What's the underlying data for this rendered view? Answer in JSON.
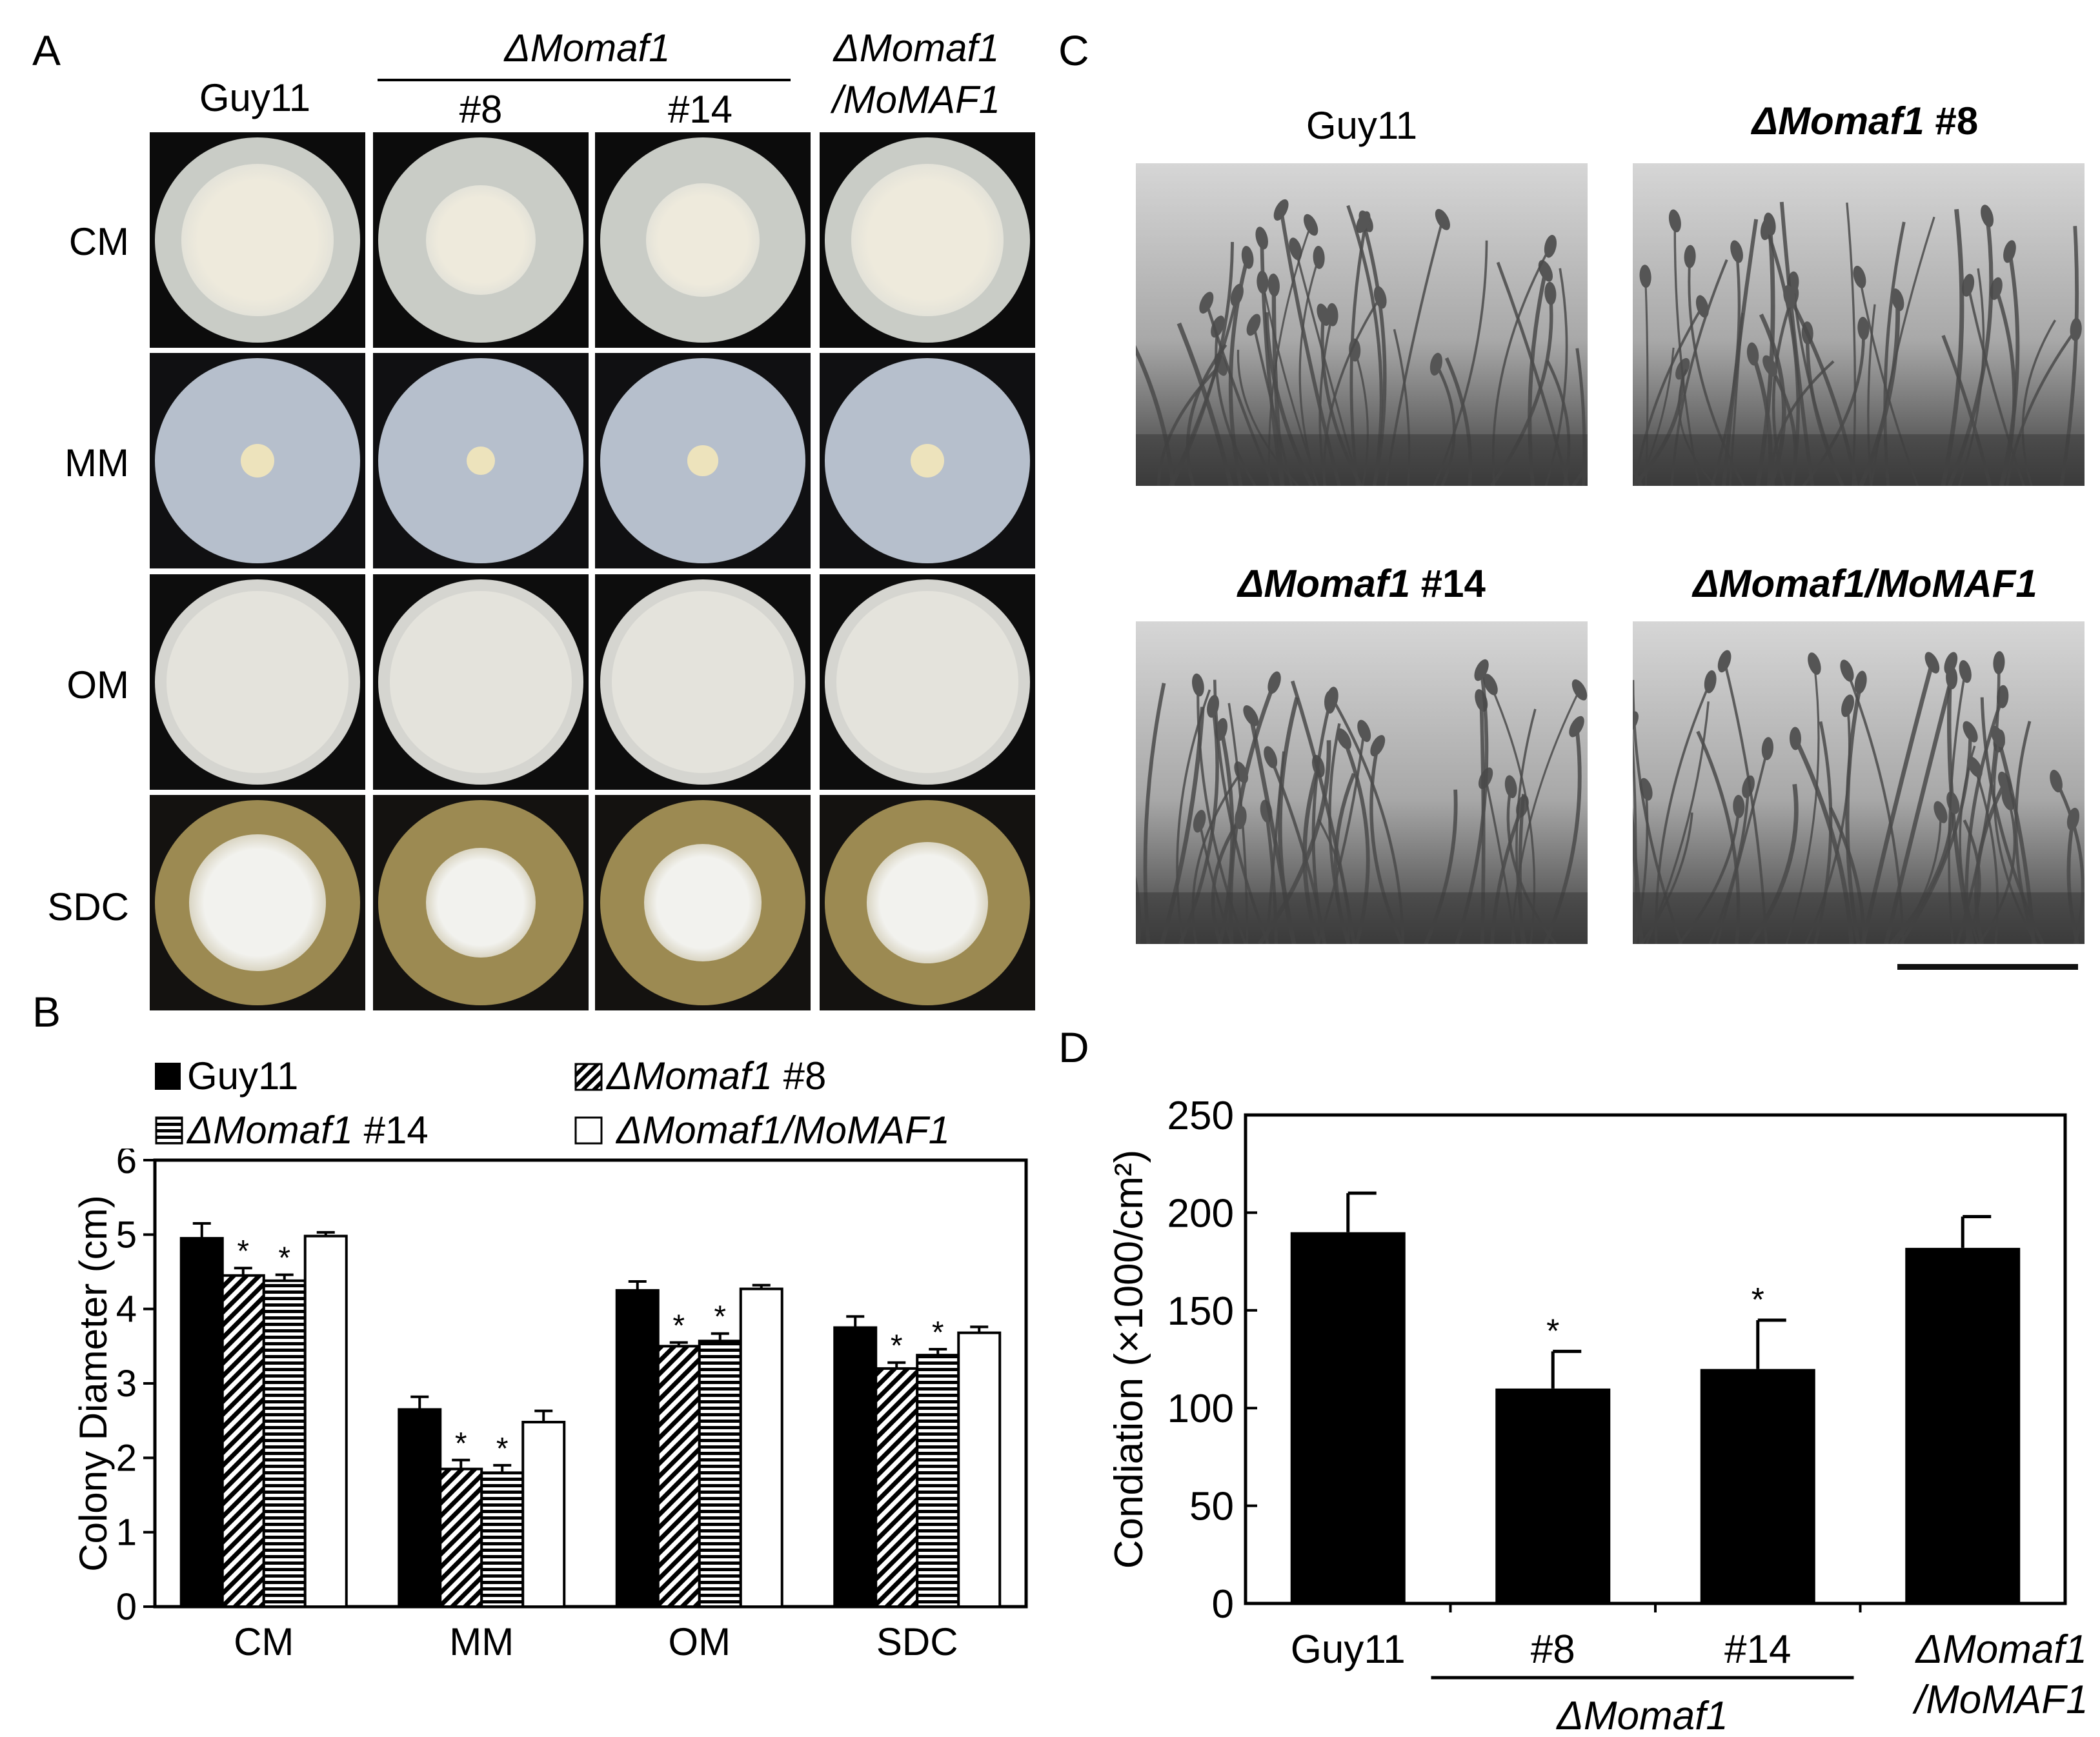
{
  "panel_letters": {
    "a": "A",
    "b": "B",
    "c": "C",
    "d": "D"
  },
  "panel_a": {
    "headers": {
      "guy11": "Guy11",
      "mutant_group": "ΔMomaf1",
      "strain8": "#8",
      "strain14": "#14",
      "complement_line1": "ΔMomaf1",
      "complement_line2": "/MoMAF1"
    },
    "rows": [
      "CM",
      "MM",
      "OM",
      "SDC"
    ]
  },
  "panel_c": {
    "labels": [
      "Guy11",
      "ΔMomaf1 #8",
      "ΔMomaf1 #14",
      "ΔMomaf1/MoMAF1"
    ]
  },
  "chart_data": [
    {
      "type": "bar",
      "panel": "B",
      "categories": [
        "CM",
        "MM",
        "OM",
        "SDC"
      ],
      "ylabel": "Colony Diameter (cm)",
      "xlabel": "",
      "ylim": [
        0,
        6
      ],
      "yticks": [
        0,
        1,
        2,
        3,
        4,
        5,
        6
      ],
      "legend_position": "top",
      "series": [
        {
          "name": "Guy11",
          "values": [
            4.95,
            2.65,
            4.25,
            3.75
          ],
          "errors": [
            0.2,
            0.17,
            0.12,
            0.15
          ],
          "fill": "solid"
        },
        {
          "name": "ΔMomaf1 #8",
          "values": [
            4.45,
            1.85,
            3.5,
            3.2
          ],
          "errors": [
            0.1,
            0.12,
            0.05,
            0.08
          ],
          "fill": "diagonal"
        },
        {
          "name": "ΔMomaf1 #14",
          "values": [
            4.38,
            1.8,
            3.57,
            3.38
          ],
          "errors": [
            0.08,
            0.1,
            0.1,
            0.08
          ],
          "fill": "horizontal"
        },
        {
          "name": "ΔMomaf1/MoMAF1",
          "values": [
            4.98,
            2.48,
            4.27,
            3.68
          ],
          "errors": [
            0.05,
            0.15,
            0.05,
            0.08
          ],
          "fill": "white"
        }
      ],
      "significance": [
        {
          "series": 1,
          "category": 0,
          "mark": "*"
        },
        {
          "series": 2,
          "category": 0,
          "mark": "*"
        },
        {
          "series": 1,
          "category": 1,
          "mark": "*"
        },
        {
          "series": 2,
          "category": 1,
          "mark": "*"
        },
        {
          "series": 1,
          "category": 2,
          "mark": "*"
        },
        {
          "series": 2,
          "category": 2,
          "mark": "*"
        },
        {
          "series": 1,
          "category": 3,
          "mark": "*"
        },
        {
          "series": 2,
          "category": 3,
          "mark": "*"
        }
      ]
    },
    {
      "type": "bar",
      "panel": "D",
      "categories": [
        "Guy11",
        "#8",
        "#14",
        "ΔMomaf1\n/MoMAF1"
      ],
      "group_label": "ΔMomaf1",
      "ylabel": "Condiation (×1000/cm²)",
      "xlabel": "",
      "ylim": [
        0,
        250
      ],
      "yticks": [
        0,
        50,
        100,
        150,
        200,
        250
      ],
      "values": [
        190,
        110,
        120,
        182
      ],
      "errors": [
        20,
        19,
        25,
        16
      ],
      "significance": [
        "",
        "*",
        "*",
        ""
      ]
    }
  ]
}
